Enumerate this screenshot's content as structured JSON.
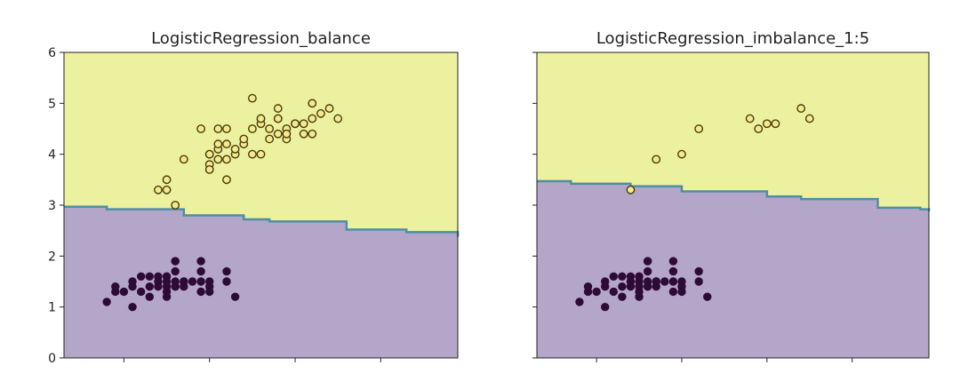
{
  "chart_data": [
    {
      "type": "scatter",
      "title": "LogisticRegression_balance",
      "xlabel": "",
      "ylabel": "",
      "ylim": [
        0,
        6
      ],
      "xlim": [
        3.8,
        8.4
      ],
      "x_ticks": [
        4.5,
        5.5,
        6.5,
        7.5
      ],
      "y_ticks": [
        "0",
        "1",
        "2",
        "3",
        "4",
        "5",
        "6"
      ],
      "grid": false,
      "decision_boundary": [
        [
          3.8,
          2.97
        ],
        [
          4.3,
          2.92
        ],
        [
          5.2,
          2.8
        ],
        [
          5.9,
          2.72
        ],
        [
          6.2,
          2.68
        ],
        [
          7.1,
          2.52
        ],
        [
          7.8,
          2.47
        ],
        [
          8.4,
          2.38
        ]
      ],
      "series": [
        {
          "values": [
            [
              4.3,
              1.1
            ],
            [
              4.4,
              1.3
            ],
            [
              4.5,
              1.3
            ],
            [
              4.6,
              1.4
            ],
            [
              4.8,
              1.4
            ],
            [
              4.8,
              1.6
            ],
            [
              4.8,
              1.2
            ],
            [
              4.9,
              1.4
            ],
            [
              4.9,
              1.5
            ],
            [
              4.9,
              1.5
            ],
            [
              4.9,
              1.6
            ],
            [
              5.0,
              1.4
            ],
            [
              5.0,
              1.2
            ],
            [
              5.0,
              1.3
            ],
            [
              5.0,
              1.5
            ],
            [
              5.0,
              1.6
            ],
            [
              5.1,
              1.4
            ],
            [
              5.1,
              1.5
            ],
            [
              5.1,
              1.4
            ],
            [
              5.1,
              1.7
            ],
            [
              5.1,
              1.9
            ],
            [
              5.1,
              1.9
            ],
            [
              5.2,
              1.5
            ],
            [
              5.2,
              1.4
            ],
            [
              5.3,
              1.5
            ],
            [
              5.4,
              1.7
            ],
            [
              5.4,
              1.5
            ],
            [
              5.4,
              1.3
            ],
            [
              5.5,
              1.5
            ],
            [
              5.5,
              1.3
            ],
            [
              5.7,
              1.5
            ],
            [
              5.7,
              1.7
            ],
            [
              5.8,
              1.2
            ],
            [
              4.4,
              1.4
            ],
            [
              4.6,
              1.0
            ],
            [
              4.7,
              1.3
            ],
            [
              4.7,
              1.6
            ],
            [
              4.6,
              1.5
            ],
            [
              5.0,
              1.6
            ],
            [
              5.2,
              1.5
            ],
            [
              5.4,
              1.9
            ],
            [
              5.5,
              1.4
            ]
          ]
        },
        {
          "values": [
            [
              4.9,
              3.3
            ],
            [
              5.0,
              3.5
            ],
            [
              5.1,
              3.0
            ],
            [
              5.2,
              3.9
            ],
            [
              5.4,
              4.5
            ],
            [
              5.5,
              4.0
            ],
            [
              5.5,
              3.8
            ],
            [
              5.6,
              4.1
            ],
            [
              5.6,
              3.9
            ],
            [
              5.7,
              4.5
            ],
            [
              5.7,
              4.2
            ],
            [
              5.8,
              4.0
            ],
            [
              5.8,
              4.1
            ],
            [
              5.9,
              4.2
            ],
            [
              6.0,
              4.5
            ],
            [
              6.0,
              5.1
            ],
            [
              6.0,
              4.0
            ],
            [
              6.1,
              4.6
            ],
            [
              6.1,
              4.7
            ],
            [
              6.2,
              4.5
            ],
            [
              6.3,
              4.7
            ],
            [
              6.3,
              4.4
            ],
            [
              6.3,
              4.9
            ],
            [
              6.3,
              4.7
            ],
            [
              6.4,
              4.5
            ],
            [
              6.4,
              4.3
            ],
            [
              6.5,
              4.6
            ],
            [
              6.6,
              4.6
            ],
            [
              6.7,
              4.4
            ],
            [
              6.7,
              5.0
            ],
            [
              6.7,
              4.7
            ],
            [
              6.8,
              4.8
            ],
            [
              6.9,
              4.9
            ],
            [
              7.0,
              4.7
            ],
            [
              5.0,
              3.3
            ],
            [
              5.5,
              3.7
            ],
            [
              5.6,
              4.5
            ],
            [
              5.7,
              3.5
            ],
            [
              5.9,
              4.3
            ],
            [
              6.1,
              4.0
            ],
            [
              6.2,
              4.3
            ],
            [
              6.4,
              4.4
            ],
            [
              5.6,
              4.2
            ],
            [
              6.1,
              4.7
            ],
            [
              6.6,
              4.4
            ],
            [
              6.5,
              4.6
            ],
            [
              5.5,
              4.0
            ],
            [
              5.7,
              3.9
            ]
          ]
        }
      ]
    },
    {
      "type": "scatter",
      "title": "LogisticRegression_imbalance_1:5",
      "xlabel": "",
      "ylabel": "",
      "ylim": [
        0,
        6
      ],
      "xlim": [
        3.8,
        8.4
      ],
      "x_ticks": [
        4.5,
        5.5,
        6.5,
        7.5
      ],
      "y_ticks": [
        "0",
        "1",
        "2",
        "3",
        "4",
        "5",
        "6"
      ],
      "grid": false,
      "decision_boundary": [
        [
          3.8,
          3.47
        ],
        [
          4.2,
          3.42
        ],
        [
          4.9,
          3.37
        ],
        [
          5.5,
          3.27
        ],
        [
          6.5,
          3.17
        ],
        [
          6.9,
          3.12
        ],
        [
          7.8,
          2.95
        ],
        [
          8.3,
          2.92
        ],
        [
          8.4,
          2.88
        ]
      ],
      "series": [
        {
          "values": [
            [
              4.3,
              1.1
            ],
            [
              4.4,
              1.3
            ],
            [
              4.5,
              1.3
            ],
            [
              4.6,
              1.4
            ],
            [
              4.8,
              1.4
            ],
            [
              4.8,
              1.6
            ],
            [
              4.8,
              1.2
            ],
            [
              4.9,
              1.4
            ],
            [
              4.9,
              1.5
            ],
            [
              4.9,
              1.5
            ],
            [
              4.9,
              1.6
            ],
            [
              5.0,
              1.4
            ],
            [
              5.0,
              1.2
            ],
            [
              5.0,
              1.3
            ],
            [
              5.0,
              1.5
            ],
            [
              5.0,
              1.6
            ],
            [
              5.1,
              1.4
            ],
            [
              5.1,
              1.5
            ],
            [
              5.1,
              1.4
            ],
            [
              5.1,
              1.7
            ],
            [
              5.1,
              1.9
            ],
            [
              5.1,
              1.9
            ],
            [
              5.2,
              1.5
            ],
            [
              5.2,
              1.4
            ],
            [
              5.3,
              1.5
            ],
            [
              5.4,
              1.7
            ],
            [
              5.4,
              1.5
            ],
            [
              5.4,
              1.3
            ],
            [
              5.5,
              1.5
            ],
            [
              5.5,
              1.3
            ],
            [
              5.7,
              1.5
            ],
            [
              5.7,
              1.7
            ],
            [
              5.8,
              1.2
            ],
            [
              4.4,
              1.4
            ],
            [
              4.6,
              1.0
            ],
            [
              4.7,
              1.3
            ],
            [
              4.7,
              1.6
            ],
            [
              4.6,
              1.5
            ],
            [
              5.0,
              1.6
            ],
            [
              5.2,
              1.5
            ],
            [
              5.4,
              1.9
            ],
            [
              5.5,
              1.4
            ]
          ]
        },
        {
          "values": [
            [
              4.9,
              3.3
            ],
            [
              5.2,
              3.9
            ],
            [
              5.5,
              4.0
            ],
            [
              5.7,
              4.5
            ],
            [
              6.3,
              4.7
            ],
            [
              6.4,
              4.5
            ],
            [
              6.5,
              4.6
            ],
            [
              6.6,
              4.6
            ],
            [
              6.9,
              4.9
            ],
            [
              7.0,
              4.7
            ]
          ]
        }
      ]
    }
  ],
  "colors": {
    "upper_region": "#ecf19f",
    "lower_region": "#b4a6c8",
    "boundary_line": "#4d8fa3",
    "class_0_point": "#2e0a36",
    "class_1_point_fill": "#f3ea8c",
    "class_1_point_edge": "#4a3b10",
    "axis": "#222222"
  }
}
